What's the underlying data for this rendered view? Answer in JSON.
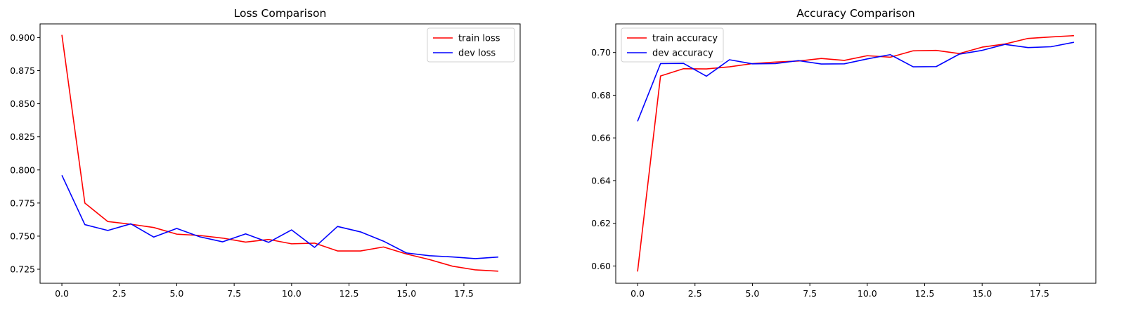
{
  "chart_data": [
    {
      "type": "line",
      "title": "Loss Comparison",
      "xlabel": "",
      "ylabel": "",
      "xlim": [
        -0.95,
        19.95
      ],
      "ylim": [
        0.7144,
        0.9103
      ],
      "x_ticks": [
        0.0,
        2.5,
        5.0,
        7.5,
        10.0,
        12.5,
        15.0,
        17.5
      ],
      "x_tick_labels": [
        "0.0",
        "2.5",
        "5.0",
        "7.5",
        "10.0",
        "12.5",
        "15.0",
        "17.5"
      ],
      "y_ticks": [
        0.725,
        0.75,
        0.775,
        0.8,
        0.825,
        0.85,
        0.875,
        0.9
      ],
      "y_tick_labels": [
        "0.725",
        "0.750",
        "0.775",
        "0.800",
        "0.825",
        "0.850",
        "0.875",
        "0.900"
      ],
      "grid": false,
      "legend_position": "top-right",
      "x": [
        0,
        1,
        2,
        3,
        4,
        5,
        6,
        7,
        8,
        9,
        10,
        11,
        12,
        13,
        14,
        15,
        16,
        17,
        18,
        19
      ],
      "series": [
        {
          "name": "train loss",
          "color": "#ff0000",
          "values": [
            0.902,
            0.775,
            0.761,
            0.759,
            0.7565,
            0.7515,
            0.7505,
            0.7485,
            0.7455,
            0.7475,
            0.7442,
            0.7447,
            0.7388,
            0.7388,
            0.7418,
            0.7365,
            0.7323,
            0.7273,
            0.7245,
            0.7235
          ]
        },
        {
          "name": "dev loss",
          "color": "#0000ff",
          "values": [
            0.796,
            0.7587,
            0.7543,
            0.7593,
            0.7493,
            0.7558,
            0.7495,
            0.7457,
            0.7517,
            0.7453,
            0.7547,
            0.7415,
            0.7573,
            0.7532,
            0.7462,
            0.7373,
            0.7352,
            0.7343,
            0.733,
            0.7342
          ]
        }
      ]
    },
    {
      "type": "line",
      "title": "Accuracy Comparison",
      "xlabel": "",
      "ylabel": "",
      "xlim": [
        -0.95,
        19.95
      ],
      "ylim": [
        0.5919,
        0.7134
      ],
      "x_ticks": [
        0.0,
        2.5,
        5.0,
        7.5,
        10.0,
        12.5,
        15.0,
        17.5
      ],
      "x_tick_labels": [
        "0.0",
        "2.5",
        "5.0",
        "7.5",
        "10.0",
        "12.5",
        "15.0",
        "17.5"
      ],
      "y_ticks": [
        0.6,
        0.62,
        0.64,
        0.66,
        0.68,
        0.7
      ],
      "y_tick_labels": [
        "0.60",
        "0.62",
        "0.64",
        "0.66",
        "0.68",
        "0.70"
      ],
      "grid": false,
      "legend_position": "top-left",
      "x": [
        0,
        1,
        2,
        3,
        4,
        5,
        6,
        7,
        8,
        9,
        10,
        11,
        12,
        13,
        14,
        15,
        16,
        17,
        18,
        19
      ],
      "series": [
        {
          "name": "train accuracy",
          "color": "#ff0000",
          "values": [
            0.5974,
            0.689,
            0.6924,
            0.6923,
            0.6933,
            0.6948,
            0.6955,
            0.696,
            0.6972,
            0.6963,
            0.6985,
            0.6978,
            0.7008,
            0.701,
            0.6995,
            0.7025,
            0.704,
            0.7066,
            0.7073,
            0.7079
          ]
        },
        {
          "name": "dev accuracy",
          "color": "#0000ff",
          "values": [
            0.6678,
            0.6948,
            0.6949,
            0.6889,
            0.6966,
            0.6947,
            0.6948,
            0.6962,
            0.6946,
            0.6947,
            0.697,
            0.699,
            0.6933,
            0.6934,
            0.6992,
            0.701,
            0.7038,
            0.7023,
            0.7027,
            0.7048
          ]
        }
      ]
    }
  ]
}
